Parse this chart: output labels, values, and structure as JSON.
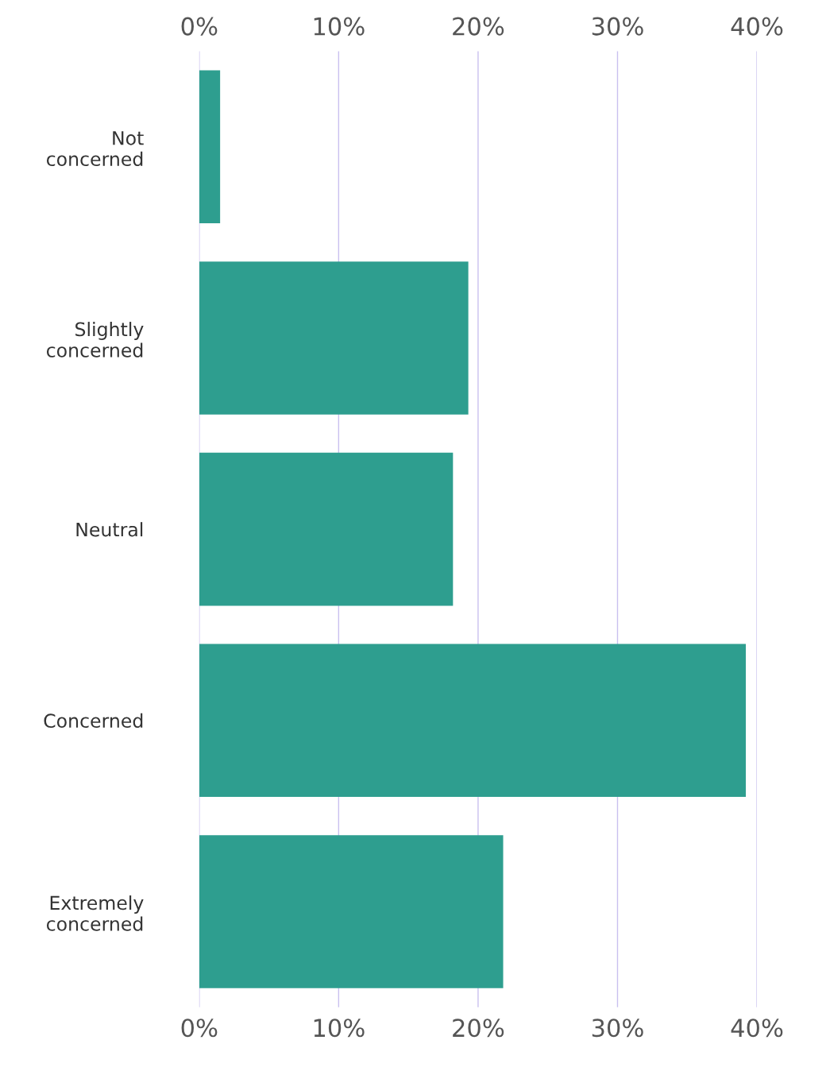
{
  "chart_data": {
    "type": "bar",
    "orientation": "horizontal",
    "categories": [
      "Not\nconcerned",
      "Slightly\nconcerned",
      "Neutral",
      "Concerned",
      "Extremely\nconcerned"
    ],
    "values": [
      1.5,
      19.3,
      18.2,
      39.2,
      21.8
    ],
    "color": "#2e9e8f",
    "xlim": [
      0,
      40
    ],
    "xticks": [
      {
        "value": 0,
        "label": "0%"
      },
      {
        "value": 10,
        "label": "10%"
      },
      {
        "value": 20,
        "label": "20%"
      },
      {
        "value": 30,
        "label": "30%"
      },
      {
        "value": 40,
        "label": "40%"
      }
    ],
    "x2lim": [
      0,
      40
    ],
    "x2ticks": [
      {
        "value": 0,
        "label": "0%"
      },
      {
        "value": 10,
        "label": "10%"
      },
      {
        "value": 20,
        "label": "20%"
      },
      {
        "value": 30,
        "label": "30%"
      },
      {
        "value": 40,
        "label": "40%"
      }
    ],
    "grid": "x"
  }
}
